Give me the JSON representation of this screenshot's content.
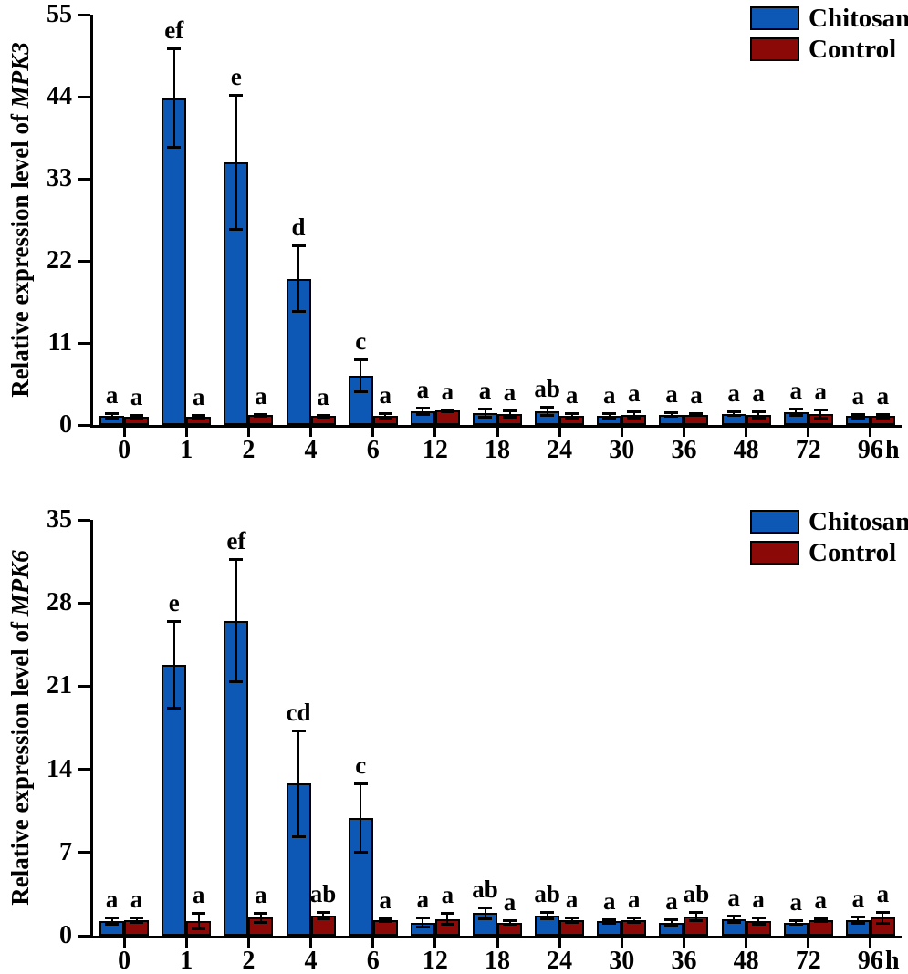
{
  "figure": {
    "background": "#ffffff",
    "axis_color": "#000000"
  },
  "colors": {
    "chitosan": "#0d57b5",
    "control": "#8b0906"
  },
  "x_axis": {
    "unit": "h",
    "categories": [
      "0",
      "1",
      "2",
      "4",
      "6",
      "12",
      "18",
      "24",
      "30",
      "36",
      "48",
      "72",
      "96"
    ]
  },
  "legend": {
    "items": [
      {
        "label": "Chitosan",
        "color": "#0d57b5"
      },
      {
        "label": "Control",
        "color": "#8b0906"
      }
    ]
  },
  "chart_data": [
    {
      "type": "bar",
      "title": "",
      "ylabel_prefix": "Relative expression level of ",
      "ylabel_gene": "MPK3",
      "xlabel_unit": "h",
      "ylim": [
        0,
        55
      ],
      "yticks": [
        0,
        11,
        22,
        33,
        44,
        55
      ],
      "grid": false,
      "legend_position": "top-right",
      "categories": [
        "0",
        "1",
        "2",
        "4",
        "6",
        "12",
        "18",
        "24",
        "30",
        "36",
        "48",
        "72",
        "96"
      ],
      "series": [
        {
          "name": "Chitosan",
          "color": "#0d57b5",
          "values": [
            1.2,
            43.8,
            35.2,
            19.6,
            6.6,
            1.8,
            1.6,
            1.8,
            1.2,
            1.4,
            1.5,
            1.7,
            1.2
          ],
          "errors": [
            0.4,
            6.7,
            9.0,
            4.5,
            2.2,
            0.5,
            0.6,
            0.6,
            0.4,
            0.3,
            0.3,
            0.5,
            0.3
          ],
          "letters": [
            "a",
            "ef",
            "e",
            "d",
            "c",
            "a",
            "a",
            "ab",
            "a",
            "a",
            "a",
            "a",
            "a"
          ]
        },
        {
          "name": "Control",
          "color": "#8b0906",
          "values": [
            1.1,
            1.1,
            1.3,
            1.2,
            1.2,
            1.9,
            1.5,
            1.2,
            1.3,
            1.4,
            1.3,
            1.5,
            1.2
          ],
          "errors": [
            0.2,
            0.2,
            0.2,
            0.2,
            0.4,
            0.2,
            0.5,
            0.4,
            0.5,
            0.2,
            0.5,
            0.6,
            0.3
          ],
          "letters": [
            "a",
            "a",
            "a",
            "a",
            "a",
            "a",
            "a",
            "a",
            "a",
            "a",
            "a",
            "a",
            "a"
          ]
        }
      ]
    },
    {
      "type": "bar",
      "title": "",
      "ylabel_prefix": "Relative expression level of ",
      "ylabel_gene": "MPK6",
      "xlabel_unit": "h",
      "ylim": [
        0,
        35
      ],
      "yticks": [
        0,
        7,
        14,
        21,
        28,
        35
      ],
      "grid": false,
      "legend_position": "top-right",
      "categories": [
        "0",
        "1",
        "2",
        "4",
        "6",
        "12",
        "18",
        "24",
        "30",
        "36",
        "48",
        "72",
        "96"
      ],
      "series": [
        {
          "name": "Chitosan",
          "color": "#0d57b5",
          "values": [
            1.2,
            22.8,
            26.5,
            12.8,
            9.9,
            1.1,
            1.9,
            1.7,
            1.2,
            1.1,
            1.4,
            1.1,
            1.3
          ],
          "errors": [
            0.3,
            3.7,
            5.2,
            4.5,
            2.9,
            0.4,
            0.5,
            0.3,
            0.2,
            0.3,
            0.3,
            0.2,
            0.3
          ],
          "letters": [
            "a",
            "e",
            "ef",
            "cd",
            "c",
            "a",
            "ab",
            "ab",
            "a",
            "a",
            "a",
            "a",
            "a"
          ]
        },
        {
          "name": "Control",
          "color": "#8b0906",
          "values": [
            1.3,
            1.2,
            1.5,
            1.7,
            1.3,
            1.4,
            1.1,
            1.3,
            1.3,
            1.6,
            1.2,
            1.3,
            1.5
          ],
          "errors": [
            0.2,
            0.7,
            0.4,
            0.3,
            0.15,
            0.5,
            0.2,
            0.25,
            0.25,
            0.4,
            0.3,
            0.15,
            0.5
          ],
          "letters": [
            "a",
            "a",
            "a",
            "ab",
            "a",
            "a",
            "a",
            "a",
            "a",
            "ab",
            "a",
            "a",
            "a"
          ]
        }
      ]
    }
  ]
}
